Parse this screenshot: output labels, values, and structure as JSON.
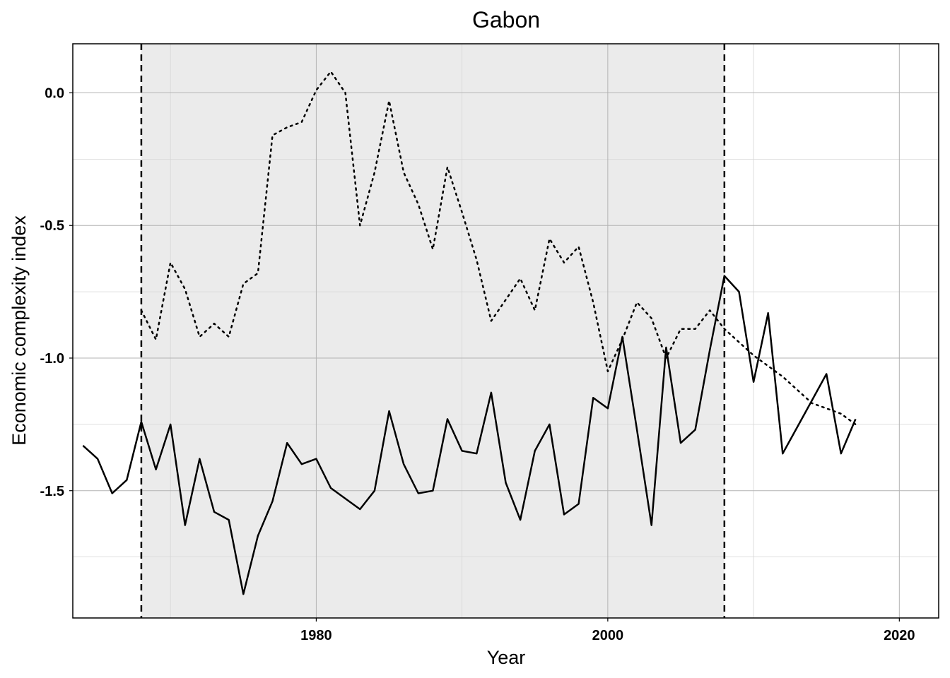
{
  "chart_data": {
    "type": "line",
    "title": "Gabon",
    "xlabel": "Year",
    "ylabel": "Economic complexity index",
    "xlim": [
      1963.3,
      2022.7
    ],
    "ylim": [
      -1.98,
      0.185
    ],
    "x_ticks": [
      1980,
      2000,
      2020
    ],
    "x_tick_labels": [
      "1980",
      "2000",
      "2020"
    ],
    "y_ticks": [
      0.0,
      -0.5,
      -1.0,
      -1.5
    ],
    "y_tick_labels": [
      "0.0",
      "-0.5",
      "-1.0",
      "-1.5"
    ],
    "x_minor_ticks": [
      1970,
      1990,
      2010
    ],
    "y_minor_ticks": [
      -0.25,
      -0.75,
      -1.25,
      -1.75
    ],
    "grid": true,
    "legend": "none",
    "shaded_region": {
      "x_start": 1968,
      "x_end": 2008,
      "color": "#ebebeb"
    },
    "vlines": [
      {
        "x": 1968,
        "style": "dashed"
      },
      {
        "x": 2008,
        "style": "dashed"
      }
    ],
    "series": [
      {
        "style": "solid",
        "color": "#000000",
        "x": [
          1964,
          1965,
          1966,
          1967,
          1968,
          1969,
          1970,
          1971,
          1972,
          1973,
          1974,
          1975,
          1976,
          1977,
          1978,
          1979,
          1980,
          1981,
          1982,
          1983,
          1984,
          1985,
          1986,
          1987,
          1988,
          1989,
          1990,
          1991,
          1992,
          1993,
          1994,
          1995,
          1996,
          1997,
          1998,
          1999,
          2000,
          2001,
          2002,
          2003,
          2004,
          2005,
          2006,
          2007,
          2008,
          2009,
          2010,
          2011,
          2012,
          2013,
          2014,
          2015,
          2016,
          2017
        ],
        "y": [
          -1.33,
          -1.38,
          -1.51,
          -1.46,
          -1.24,
          -1.42,
          -1.25,
          -1.63,
          -1.38,
          -1.58,
          -1.61,
          -1.89,
          -1.67,
          -1.54,
          -1.32,
          -1.4,
          -1.38,
          -1.49,
          -1.53,
          -1.57,
          -1.5,
          -1.2,
          -1.4,
          -1.51,
          -1.5,
          -1.23,
          -1.35,
          -1.36,
          -1.13,
          -1.47,
          -1.61,
          -1.35,
          -1.25,
          -1.59,
          -1.55,
          -1.15,
          -1.19,
          -0.92,
          -1.27,
          -1.63,
          -0.96,
          -1.32,
          -1.27,
          -0.97,
          -0.69,
          -0.75,
          -1.09,
          -0.83,
          -1.36,
          -1.26,
          -1.16,
          -1.06,
          -1.36,
          -1.23
        ]
      },
      {
        "style": "dotted",
        "color": "#000000",
        "x": [
          1968,
          1969,
          1970,
          1971,
          1972,
          1973,
          1974,
          1975,
          1976,
          1977,
          1978,
          1979,
          1980,
          1981,
          1982,
          1983,
          1984,
          1985,
          1986,
          1987,
          1988,
          1989,
          1990,
          1991,
          1992,
          1993,
          1994,
          1995,
          1996,
          1997,
          1998,
          1999,
          2000,
          2001,
          2002,
          2003,
          2004,
          2005,
          2006,
          2007,
          2008,
          2010,
          2012,
          2014,
          2016,
          2017
        ],
        "y": [
          -0.82,
          -0.93,
          -0.64,
          -0.74,
          -0.92,
          -0.87,
          -0.92,
          -0.72,
          -0.68,
          -0.16,
          -0.13,
          -0.11,
          0.01,
          0.08,
          0.0,
          -0.5,
          -0.3,
          -0.03,
          -0.3,
          -0.42,
          -0.59,
          -0.28,
          -0.45,
          -0.63,
          -0.86,
          -0.78,
          -0.7,
          -0.82,
          -0.55,
          -0.64,
          -0.58,
          -0.79,
          -1.05,
          -0.93,
          -0.79,
          -0.85,
          -1.0,
          -0.89,
          -0.89,
          -0.82,
          -0.89,
          -0.99,
          -1.07,
          -1.17,
          -1.21,
          -1.25
        ]
      }
    ]
  }
}
